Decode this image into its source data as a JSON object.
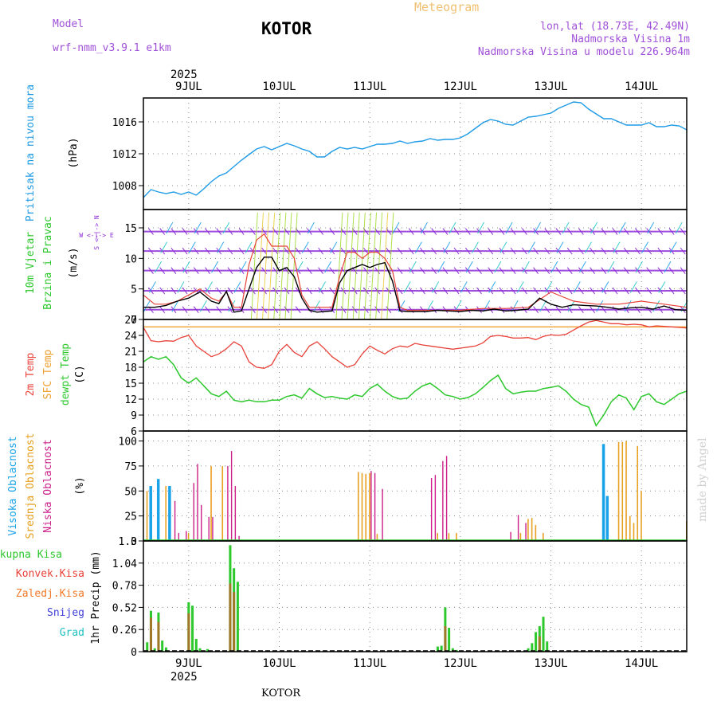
{
  "header": {
    "model_label": "Model",
    "model_name": "wrf-nmm_v3.9.1 e1km",
    "station_title": "KOTOR",
    "chart_title": "Meteogram",
    "coords": "lon,lat (18.73E, 42.49N)",
    "elevation": "Nadmorska Visina 1m",
    "model_elevation": "Nadmorska Visina u modelu 226.964m",
    "year_top": "2025",
    "year_bottom": "2025",
    "footer_station": "KOTOR",
    "credit": "made by Angel"
  },
  "colors": {
    "pressure": "#1e9be6",
    "temp2m": "#e8423a",
    "sfc_temp": "#f0a030",
    "dewpt": "#2cc82c",
    "high_cloud": "#1aa3e8",
    "mid_cloud": "#e8a020",
    "low_cloud": "#cc1f8a",
    "total_precip": "#2cc82c",
    "conv_precip": "#e8423a",
    "frozen_precip": "#f07a2a",
    "snow": "#4040d8",
    "hail": "#20c0c0",
    "wind_purple": "#8b2bd6"
  },
  "panels": {
    "pressure": {
      "label": "Pritisak na nivou mora",
      "unit": "(hPa)"
    },
    "wind": {
      "label1": "10m Vjetar",
      "label2": "Brzina i Pravac",
      "unit": "(m/s)",
      "compass": "W <-|-> E",
      "compass_ns": "S <-|-> N"
    },
    "temp": {
      "label1": "2m Temp",
      "label2": "SFC Temp",
      "label3": "dewpt Temp",
      "unit": "(C)"
    },
    "cloud": {
      "label1": "Visoka Oblacnost",
      "label2": "Srednja Oblacnost",
      "label3": "Niska Oblacnost",
      "unit": "(%)"
    },
    "precip": {
      "label1": "Ukupna Kisa",
      "label2": "Konvek.Kisa",
      "label3": "Zaledj.Kisa",
      "label4": "Snijeg",
      "label5": "Grad",
      "unit": "1hr Precip (mm)"
    }
  },
  "chart_data": {
    "type": "line",
    "x_unit": "hours from 8 JUL 12 UTC",
    "day_ticks": [
      {
        "label": "9JUL",
        "x": 12
      },
      {
        "label": "10JUL",
        "x": 36
      },
      {
        "label": "11JUL",
        "x": 60
      },
      {
        "label": "12JUL",
        "x": 84
      },
      {
        "label": "13JUL",
        "x": 108
      },
      {
        "label": "14JUL",
        "x": 132
      }
    ],
    "xlim": [
      0,
      144
    ],
    "pressure": {
      "ylim": [
        1005,
        1019
      ],
      "yticks": [
        "1008",
        "1012",
        "1016"
      ],
      "x": [
        0,
        2,
        4,
        6,
        8,
        10,
        12,
        14,
        16,
        18,
        20,
        22,
        24,
        26,
        28,
        30,
        32,
        34,
        36,
        38,
        40,
        42,
        44,
        46,
        48,
        50,
        52,
        54,
        56,
        58,
        60,
        62,
        64,
        66,
        68,
        70,
        72,
        74,
        76,
        78,
        80,
        82,
        84,
        86,
        88,
        90,
        92,
        94,
        96,
        98,
        100,
        102,
        104,
        106,
        108,
        110,
        112,
        114,
        116,
        118,
        120,
        122,
        124,
        126,
        128,
        130,
        132,
        134,
        136,
        138,
        140,
        142,
        144
      ],
      "values": [
        1006.5,
        1007.5,
        1007.2,
        1007.0,
        1007.2,
        1006.9,
        1007.2,
        1006.8,
        1007.6,
        1008.5,
        1009.2,
        1009.6,
        1010.4,
        1011.2,
        1011.9,
        1012.6,
        1012.9,
        1012.5,
        1012.9,
        1013.3,
        1013.0,
        1012.6,
        1012.3,
        1011.6,
        1011.6,
        1012.3,
        1012.8,
        1012.6,
        1012.8,
        1012.6,
        1012.9,
        1013.2,
        1013.2,
        1013.3,
        1013.6,
        1013.3,
        1013.5,
        1013.6,
        1013.9,
        1013.7,
        1013.8,
        1013.8,
        1014.0,
        1014.5,
        1015.2,
        1015.9,
        1016.3,
        1016.1,
        1015.7,
        1015.6,
        1016.1,
        1016.6,
        1016.7,
        1016.9,
        1017.1,
        1017.7,
        1018.1,
        1018.5,
        1018.4,
        1017.6,
        1017.0,
        1016.4,
        1016.4,
        1016.0,
        1015.6,
        1015.6,
        1015.6,
        1015.9,
        1015.4,
        1015.4,
        1015.6,
        1015.5,
        1015.0
      ]
    },
    "wind": {
      "ylim": [
        0,
        18
      ],
      "yticks": [
        "0",
        "5",
        "10",
        "15"
      ],
      "speed_x": [
        0,
        3,
        6,
        9,
        12,
        15,
        18,
        20,
        22,
        24,
        26,
        28,
        30,
        32,
        34,
        36,
        38,
        40,
        42,
        44,
        46,
        48,
        50,
        52,
        54,
        56,
        58,
        60,
        62,
        64,
        66,
        68,
        70,
        72,
        75,
        78,
        81,
        84,
        87,
        90,
        93,
        96,
        99,
        102,
        105,
        108,
        111,
        114,
        117,
        120,
        123,
        126,
        129,
        132,
        135,
        138,
        141,
        144
      ],
      "speed_values": [
        2.0,
        2.0,
        2.3,
        3.0,
        3.5,
        4.5,
        3.0,
        2.6,
        4.6,
        1.2,
        1.4,
        5.0,
        8.5,
        10.2,
        10.2,
        8.0,
        8.5,
        7.0,
        3.5,
        1.5,
        1.2,
        1.3,
        1.4,
        6.0,
        8.0,
        8.5,
        9.0,
        8.5,
        9.0,
        9.3,
        6.3,
        1.4,
        1.3,
        1.3,
        1.3,
        1.5,
        1.4,
        1.3,
        1.5,
        1.4,
        1.7,
        1.4,
        1.5,
        1.7,
        3.5,
        2.5,
        2.0,
        2.4,
        2.3,
        2.2,
        2.0,
        1.7,
        1.9,
        2.0,
        1.7,
        2.2,
        1.6,
        1.5
      ],
      "gust_x": [
        0,
        3,
        6,
        9,
        12,
        15,
        18,
        20,
        22,
        24,
        26,
        28,
        30,
        32,
        34,
        36,
        38,
        40,
        42,
        44,
        46,
        48,
        50,
        52,
        54,
        56,
        58,
        60,
        62,
        64,
        66,
        68,
        70,
        72,
        78,
        84,
        90,
        96,
        102,
        108,
        114,
        120,
        126,
        132,
        138,
        144
      ],
      "gust_values": [
        4.0,
        2.5,
        2.5,
        3.0,
        4.0,
        5.0,
        3.5,
        3.0,
        4.5,
        2.0,
        2.0,
        9.0,
        13.0,
        14.0,
        12.0,
        12.0,
        12.0,
        10.0,
        4.0,
        2.0,
        2.0,
        2.0,
        2.0,
        7.0,
        11.0,
        11.0,
        10.0,
        11.0,
        11.0,
        10.0,
        8.0,
        2.0,
        1.5,
        1.5,
        1.5,
        1.5,
        1.8,
        1.8,
        2.0,
        4.5,
        3.0,
        2.5,
        2.5,
        3.0,
        2.5,
        2.0
      ]
    },
    "temperature": {
      "ylim": [
        6,
        27
      ],
      "yticks": [
        "6",
        "9",
        "12",
        "15",
        "18",
        "21",
        "24",
        "27"
      ],
      "sfc_temp": 25.6,
      "x": [
        0,
        2,
        4,
        6,
        8,
        10,
        12,
        14,
        16,
        18,
        20,
        22,
        24,
        26,
        28,
        30,
        32,
        34,
        36,
        38,
        40,
        42,
        44,
        46,
        48,
        50,
        52,
        54,
        56,
        58,
        60,
        62,
        64,
        66,
        68,
        70,
        72,
        74,
        76,
        78,
        80,
        82,
        84,
        86,
        88,
        90,
        92,
        94,
        96,
        98,
        100,
        102,
        104,
        106,
        108,
        110,
        112,
        114,
        116,
        118,
        120,
        122,
        124,
        126,
        128,
        130,
        132,
        134,
        136,
        138,
        140,
        142,
        144
      ],
      "temp2m": [
        25.5,
        23.0,
        22.8,
        23.0,
        22.9,
        23.6,
        24.0,
        22.0,
        21.0,
        20.0,
        20.5,
        21.5,
        22.8,
        22.0,
        19.0,
        18.0,
        17.8,
        18.5,
        21.0,
        22.3,
        20.8,
        20.0,
        22.0,
        22.8,
        21.5,
        20.0,
        19.0,
        18.0,
        18.5,
        20.5,
        22.0,
        21.2,
        20.5,
        21.5,
        22.0,
        21.8,
        22.5,
        22.2,
        22.0,
        21.8,
        21.6,
        21.4,
        21.6,
        21.8,
        22.0,
        22.6,
        23.8,
        24.0,
        23.8,
        23.5,
        23.5,
        23.6,
        23.2,
        23.8,
        24.1,
        24.0,
        24.2,
        25.0,
        25.8,
        26.5,
        26.8,
        26.5,
        26.2,
        26.2,
        26.0,
        26.1,
        26.0,
        25.6,
        25.8,
        25.7,
        25.6,
        25.5,
        25.4
      ],
      "dewpt": [
        19.0,
        20.0,
        19.5,
        20.0,
        18.5,
        16.0,
        15.0,
        16.0,
        14.5,
        13.0,
        12.5,
        13.5,
        11.8,
        11.5,
        11.8,
        11.5,
        11.5,
        11.8,
        11.8,
        12.5,
        12.8,
        12.2,
        14.0,
        13.0,
        12.3,
        12.5,
        12.2,
        12.0,
        12.8,
        12.5,
        14.0,
        14.8,
        13.5,
        12.5,
        12.0,
        12.2,
        13.5,
        14.5,
        15.0,
        14.0,
        12.8,
        12.5,
        12.0,
        12.3,
        13.0,
        14.2,
        15.5,
        16.5,
        14.0,
        13.0,
        13.3,
        13.5,
        13.5,
        14.0,
        14.2,
        14.5,
        13.5,
        12.0,
        11.0,
        10.5,
        7.0,
        9.0,
        11.5,
        12.8,
        12.2,
        10.0,
        12.5,
        13.0,
        11.5,
        11.0,
        12.0,
        13.0,
        13.5
      ]
    },
    "cloud": {
      "ylim": [
        0,
        110
      ],
      "yticks": [
        "0",
        "25",
        "50",
        "75",
        "100"
      ],
      "high": [
        [
          2,
          55
        ],
        [
          4,
          62
        ],
        [
          7,
          55
        ],
        [
          122,
          97
        ],
        [
          123,
          45
        ]
      ],
      "mid": [
        [
          1,
          50
        ],
        [
          6,
          55
        ],
        [
          12,
          8
        ],
        [
          18,
          75
        ],
        [
          21,
          75
        ],
        [
          57,
          69
        ],
        [
          58,
          68
        ],
        [
          59,
          67
        ],
        [
          60,
          68
        ],
        [
          62,
          7
        ],
        [
          78,
          8
        ],
        [
          81,
          8
        ],
        [
          83,
          8
        ],
        [
          100,
          8
        ],
        [
          102,
          22
        ],
        [
          103,
          23
        ],
        [
          104,
          16
        ],
        [
          106,
          8
        ],
        [
          126,
          99
        ],
        [
          127,
          99
        ],
        [
          128,
          100
        ],
        [
          129,
          25
        ],
        [
          130,
          18
        ],
        [
          131,
          95
        ],
        [
          132,
          50
        ],
        [
          144,
          20
        ]
      ],
      "low": [
        [
          8,
          40
        ],
        [
          9,
          8
        ],
        [
          11,
          10
        ],
        [
          13,
          58
        ],
        [
          14,
          77
        ],
        [
          15,
          36
        ],
        [
          17,
          24
        ],
        [
          18,
          24
        ],
        [
          22,
          75
        ],
        [
          23,
          90
        ],
        [
          24,
          55
        ],
        [
          25,
          5
        ],
        [
          60,
          70
        ],
        [
          61,
          68
        ],
        [
          63,
          52
        ],
        [
          76,
          63
        ],
        [
          77,
          66
        ],
        [
          79,
          80
        ],
        [
          80,
          85
        ],
        [
          97,
          9
        ],
        [
          99,
          26
        ],
        [
          101,
          18
        ]
      ]
    },
    "precip": {
      "ylim": [
        0,
        1.3
      ],
      "yticks": [
        "0",
        "0.26",
        "0.52",
        "0.78",
        "1.04",
        "1.3"
      ],
      "total": [
        [
          1,
          0.11
        ],
        [
          2,
          0.48
        ],
        [
          3,
          0.04
        ],
        [
          4,
          0.46
        ],
        [
          5,
          0.13
        ],
        [
          6,
          0.05
        ],
        [
          12,
          0.58
        ],
        [
          13,
          0.54
        ],
        [
          14,
          0.15
        ],
        [
          15,
          0.04
        ],
        [
          17,
          0.03
        ],
        [
          23,
          1.25
        ],
        [
          24,
          0.98
        ],
        [
          25,
          0.82
        ],
        [
          78,
          0.06
        ],
        [
          79,
          0.07
        ],
        [
          80,
          0.52
        ],
        [
          81,
          0.28
        ],
        [
          82,
          0.04
        ],
        [
          83,
          0.02
        ],
        [
          102,
          0.04
        ],
        [
          103,
          0.1
        ],
        [
          104,
          0.23
        ],
        [
          105,
          0.3
        ],
        [
          106,
          0.41
        ],
        [
          107,
          0.12
        ]
      ],
      "convective": [
        [
          2,
          0.4
        ],
        [
          4,
          0.35
        ],
        [
          12,
          0.45
        ],
        [
          23,
          0.8
        ],
        [
          24,
          0.7
        ],
        [
          80,
          0.3
        ],
        [
          105,
          0.18
        ]
      ]
    }
  }
}
